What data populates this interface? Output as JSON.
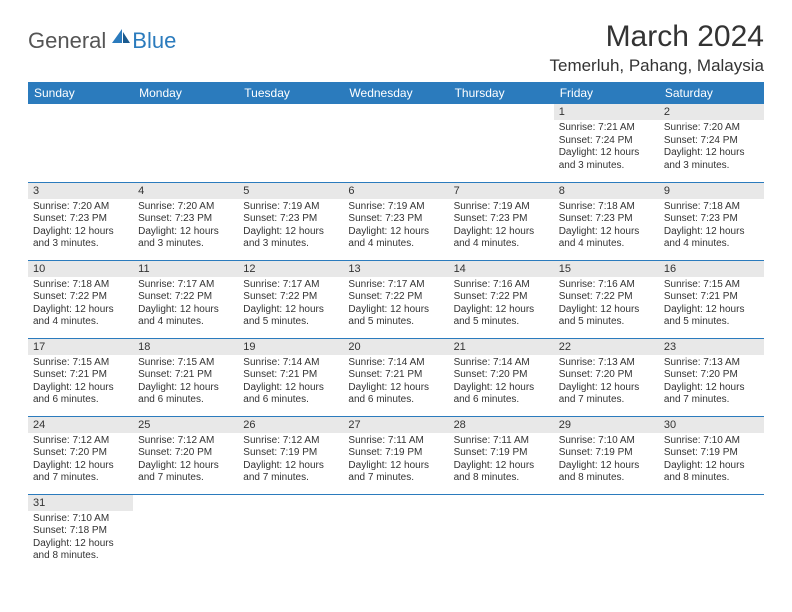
{
  "logo": {
    "part1": "General",
    "part2": "Blue"
  },
  "title": "March 2024",
  "location": "Temerluh, Pahang, Malaysia",
  "dayHeaders": [
    "Sunday",
    "Monday",
    "Tuesday",
    "Wednesday",
    "Thursday",
    "Friday",
    "Saturday"
  ],
  "colors": {
    "headerBg": "#2b7bbd",
    "headerText": "#ffffff",
    "dayStripBg": "#e8e8e8",
    "border": "#2b7bbd",
    "logoAccent": "#2b7bbd",
    "logoGray": "#555555"
  },
  "weeks": [
    [
      null,
      null,
      null,
      null,
      null,
      {
        "n": "1",
        "sr": "Sunrise: 7:21 AM",
        "ss": "Sunset: 7:24 PM",
        "d1": "Daylight: 12 hours",
        "d2": "and 3 minutes."
      },
      {
        "n": "2",
        "sr": "Sunrise: 7:20 AM",
        "ss": "Sunset: 7:24 PM",
        "d1": "Daylight: 12 hours",
        "d2": "and 3 minutes."
      }
    ],
    [
      {
        "n": "3",
        "sr": "Sunrise: 7:20 AM",
        "ss": "Sunset: 7:23 PM",
        "d1": "Daylight: 12 hours",
        "d2": "and 3 minutes."
      },
      {
        "n": "4",
        "sr": "Sunrise: 7:20 AM",
        "ss": "Sunset: 7:23 PM",
        "d1": "Daylight: 12 hours",
        "d2": "and 3 minutes."
      },
      {
        "n": "5",
        "sr": "Sunrise: 7:19 AM",
        "ss": "Sunset: 7:23 PM",
        "d1": "Daylight: 12 hours",
        "d2": "and 3 minutes."
      },
      {
        "n": "6",
        "sr": "Sunrise: 7:19 AM",
        "ss": "Sunset: 7:23 PM",
        "d1": "Daylight: 12 hours",
        "d2": "and 4 minutes."
      },
      {
        "n": "7",
        "sr": "Sunrise: 7:19 AM",
        "ss": "Sunset: 7:23 PM",
        "d1": "Daylight: 12 hours",
        "d2": "and 4 minutes."
      },
      {
        "n": "8",
        "sr": "Sunrise: 7:18 AM",
        "ss": "Sunset: 7:23 PM",
        "d1": "Daylight: 12 hours",
        "d2": "and 4 minutes."
      },
      {
        "n": "9",
        "sr": "Sunrise: 7:18 AM",
        "ss": "Sunset: 7:23 PM",
        "d1": "Daylight: 12 hours",
        "d2": "and 4 minutes."
      }
    ],
    [
      {
        "n": "10",
        "sr": "Sunrise: 7:18 AM",
        "ss": "Sunset: 7:22 PM",
        "d1": "Daylight: 12 hours",
        "d2": "and 4 minutes."
      },
      {
        "n": "11",
        "sr": "Sunrise: 7:17 AM",
        "ss": "Sunset: 7:22 PM",
        "d1": "Daylight: 12 hours",
        "d2": "and 4 minutes."
      },
      {
        "n": "12",
        "sr": "Sunrise: 7:17 AM",
        "ss": "Sunset: 7:22 PM",
        "d1": "Daylight: 12 hours",
        "d2": "and 5 minutes."
      },
      {
        "n": "13",
        "sr": "Sunrise: 7:17 AM",
        "ss": "Sunset: 7:22 PM",
        "d1": "Daylight: 12 hours",
        "d2": "and 5 minutes."
      },
      {
        "n": "14",
        "sr": "Sunrise: 7:16 AM",
        "ss": "Sunset: 7:22 PM",
        "d1": "Daylight: 12 hours",
        "d2": "and 5 minutes."
      },
      {
        "n": "15",
        "sr": "Sunrise: 7:16 AM",
        "ss": "Sunset: 7:22 PM",
        "d1": "Daylight: 12 hours",
        "d2": "and 5 minutes."
      },
      {
        "n": "16",
        "sr": "Sunrise: 7:15 AM",
        "ss": "Sunset: 7:21 PM",
        "d1": "Daylight: 12 hours",
        "d2": "and 5 minutes."
      }
    ],
    [
      {
        "n": "17",
        "sr": "Sunrise: 7:15 AM",
        "ss": "Sunset: 7:21 PM",
        "d1": "Daylight: 12 hours",
        "d2": "and 6 minutes."
      },
      {
        "n": "18",
        "sr": "Sunrise: 7:15 AM",
        "ss": "Sunset: 7:21 PM",
        "d1": "Daylight: 12 hours",
        "d2": "and 6 minutes."
      },
      {
        "n": "19",
        "sr": "Sunrise: 7:14 AM",
        "ss": "Sunset: 7:21 PM",
        "d1": "Daylight: 12 hours",
        "d2": "and 6 minutes."
      },
      {
        "n": "20",
        "sr": "Sunrise: 7:14 AM",
        "ss": "Sunset: 7:21 PM",
        "d1": "Daylight: 12 hours",
        "d2": "and 6 minutes."
      },
      {
        "n": "21",
        "sr": "Sunrise: 7:14 AM",
        "ss": "Sunset: 7:20 PM",
        "d1": "Daylight: 12 hours",
        "d2": "and 6 minutes."
      },
      {
        "n": "22",
        "sr": "Sunrise: 7:13 AM",
        "ss": "Sunset: 7:20 PM",
        "d1": "Daylight: 12 hours",
        "d2": "and 7 minutes."
      },
      {
        "n": "23",
        "sr": "Sunrise: 7:13 AM",
        "ss": "Sunset: 7:20 PM",
        "d1": "Daylight: 12 hours",
        "d2": "and 7 minutes."
      }
    ],
    [
      {
        "n": "24",
        "sr": "Sunrise: 7:12 AM",
        "ss": "Sunset: 7:20 PM",
        "d1": "Daylight: 12 hours",
        "d2": "and 7 minutes."
      },
      {
        "n": "25",
        "sr": "Sunrise: 7:12 AM",
        "ss": "Sunset: 7:20 PM",
        "d1": "Daylight: 12 hours",
        "d2": "and 7 minutes."
      },
      {
        "n": "26",
        "sr": "Sunrise: 7:12 AM",
        "ss": "Sunset: 7:19 PM",
        "d1": "Daylight: 12 hours",
        "d2": "and 7 minutes."
      },
      {
        "n": "27",
        "sr": "Sunrise: 7:11 AM",
        "ss": "Sunset: 7:19 PM",
        "d1": "Daylight: 12 hours",
        "d2": "and 7 minutes."
      },
      {
        "n": "28",
        "sr": "Sunrise: 7:11 AM",
        "ss": "Sunset: 7:19 PM",
        "d1": "Daylight: 12 hours",
        "d2": "and 8 minutes."
      },
      {
        "n": "29",
        "sr": "Sunrise: 7:10 AM",
        "ss": "Sunset: 7:19 PM",
        "d1": "Daylight: 12 hours",
        "d2": "and 8 minutes."
      },
      {
        "n": "30",
        "sr": "Sunrise: 7:10 AM",
        "ss": "Sunset: 7:19 PM",
        "d1": "Daylight: 12 hours",
        "d2": "and 8 minutes."
      }
    ],
    [
      {
        "n": "31",
        "sr": "Sunrise: 7:10 AM",
        "ss": "Sunset: 7:18 PM",
        "d1": "Daylight: 12 hours",
        "d2": "and 8 minutes."
      },
      null,
      null,
      null,
      null,
      null,
      null
    ]
  ]
}
